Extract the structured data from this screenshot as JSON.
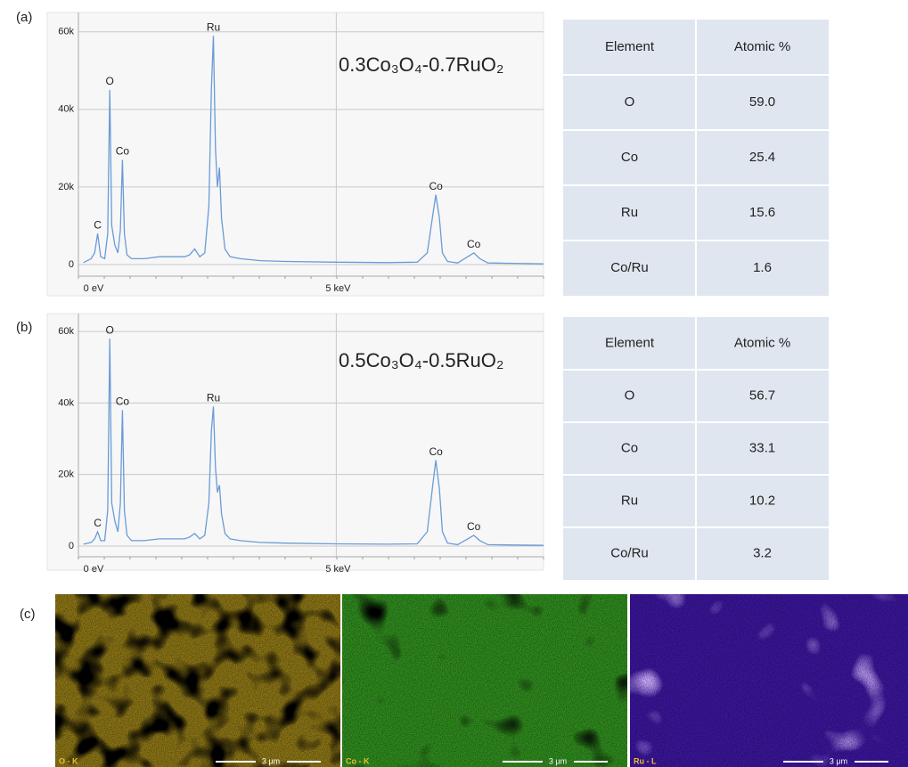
{
  "chart_data": [
    {
      "type": "line",
      "panel": "(a)",
      "title": "0.3Co₃O₄-0.7RuO₂",
      "color": "#6a9ad8",
      "grid": true,
      "xlim": [
        -0.1,
        9.1
      ],
      "xticks": [
        {
          "value": 0,
          "label": "0 eV"
        },
        {
          "value": 5,
          "label": "5 keV"
        }
      ],
      "ylim": [
        -3000,
        65000
      ],
      "yticks": [
        0,
        {
          "value": 20000,
          "label": "20k"
        },
        {
          "value": 40000,
          "label": "40k"
        },
        {
          "value": 60000,
          "label": "60k"
        }
      ],
      "x": [
        0,
        0.15,
        0.22,
        0.28,
        0.34,
        0.42,
        0.48,
        0.52,
        0.56,
        0.62,
        0.68,
        0.73,
        0.77,
        0.81,
        0.86,
        0.95,
        1.2,
        1.5,
        1.8,
        2.0,
        2.1,
        2.2,
        2.3,
        2.4,
        2.48,
        2.53,
        2.57,
        2.61,
        2.65,
        2.69,
        2.73,
        2.8,
        2.9,
        3.1,
        3.5,
        4.0,
        5.0,
        6.0,
        6.6,
        6.8,
        6.9,
        6.97,
        7.04,
        7.1,
        7.2,
        7.4,
        7.6,
        7.72,
        7.84,
        8.0,
        8.5,
        9.1
      ],
      "values": [
        500,
        1500,
        3000,
        8000,
        2000,
        1500,
        8000,
        45000,
        10000,
        5000,
        3000,
        9000,
        27000,
        8000,
        2500,
        1500,
        1500,
        2000,
        2000,
        2000,
        2500,
        4000,
        2000,
        3000,
        15000,
        45000,
        59000,
        30000,
        20000,
        25000,
        12000,
        4000,
        2000,
        1500,
        1000,
        800,
        600,
        500,
        600,
        3000,
        12000,
        18000,
        12000,
        3000,
        800,
        400,
        2000,
        3000,
        1500,
        400,
        300,
        200
      ],
      "annotations": [
        {
          "text": "C",
          "x": 0.28,
          "y": 8000
        },
        {
          "text": "O",
          "x": 0.52,
          "y": 45000
        },
        {
          "text": "Co",
          "x": 0.77,
          "y": 27000
        },
        {
          "text": "Ru",
          "x": 2.57,
          "y": 59000
        },
        {
          "text": "Co",
          "x": 6.97,
          "y": 18000
        },
        {
          "text": "Co",
          "x": 7.72,
          "y": 3000
        }
      ]
    },
    {
      "type": "line",
      "panel": "(b)",
      "title": "0.5Co₃O₄-0.5RuO₂",
      "color": "#6a9ad8",
      "grid": true,
      "xlim": [
        -0.1,
        9.1
      ],
      "xticks": [
        {
          "value": 0,
          "label": "0 eV"
        },
        {
          "value": 5,
          "label": "5 keV"
        }
      ],
      "ylim": [
        -3000,
        65000
      ],
      "yticks": [
        0,
        {
          "value": 20000,
          "label": "20k"
        },
        {
          "value": 40000,
          "label": "40k"
        },
        {
          "value": 60000,
          "label": "60k"
        }
      ],
      "x": [
        0,
        0.15,
        0.22,
        0.28,
        0.34,
        0.42,
        0.48,
        0.52,
        0.56,
        0.62,
        0.68,
        0.73,
        0.77,
        0.81,
        0.86,
        0.95,
        1.2,
        1.5,
        1.8,
        2.0,
        2.1,
        2.2,
        2.3,
        2.4,
        2.48,
        2.53,
        2.57,
        2.61,
        2.65,
        2.69,
        2.73,
        2.8,
        2.9,
        3.1,
        3.5,
        4.0,
        5.0,
        6.0,
        6.6,
        6.8,
        6.9,
        6.97,
        7.04,
        7.1,
        7.2,
        7.4,
        7.6,
        7.72,
        7.84,
        8.0,
        8.5,
        9.1
      ],
      "values": [
        500,
        1000,
        2000,
        4000,
        1500,
        1500,
        10000,
        58000,
        12000,
        7000,
        4000,
        12000,
        38000,
        10000,
        3000,
        1500,
        1500,
        2000,
        2000,
        2000,
        2500,
        3500,
        2000,
        3000,
        12000,
        32000,
        39000,
        22000,
        15000,
        17000,
        9000,
        3500,
        2000,
        1500,
        1000,
        800,
        600,
        500,
        600,
        4000,
        16000,
        24000,
        16000,
        4000,
        800,
        400,
        2000,
        3000,
        1500,
        400,
        300,
        200
      ],
      "annotations": [
        {
          "text": "C",
          "x": 0.28,
          "y": 4000
        },
        {
          "text": "O",
          "x": 0.52,
          "y": 58000
        },
        {
          "text": "Co",
          "x": 0.77,
          "y": 38000
        },
        {
          "text": "Ru",
          "x": 2.57,
          "y": 39000
        },
        {
          "text": "Co",
          "x": 6.97,
          "y": 24000
        },
        {
          "text": "Co",
          "x": 7.72,
          "y": 3000
        }
      ]
    }
  ],
  "tables": [
    {
      "header": [
        "Element",
        "Atomic %"
      ],
      "rows": [
        [
          "O",
          "59.0"
        ],
        [
          "Co",
          "25.4"
        ],
        [
          "Ru",
          "15.6"
        ],
        [
          "Co/Ru",
          "1.6"
        ]
      ]
    },
    {
      "header": [
        "Element",
        "Atomic %"
      ],
      "rows": [
        [
          "O",
          "56.7"
        ],
        [
          "Co",
          "33.1"
        ],
        [
          "Ru",
          "10.2"
        ],
        [
          "Co/Ru",
          "3.2"
        ]
      ]
    }
  ],
  "maps": {
    "panel": "(c)",
    "items": [
      {
        "label": "O - K",
        "scale": "3 μm"
      },
      {
        "label": "Co - K",
        "scale": "3 μm"
      },
      {
        "label": "Ru - L",
        "scale": "3 μm"
      }
    ]
  }
}
